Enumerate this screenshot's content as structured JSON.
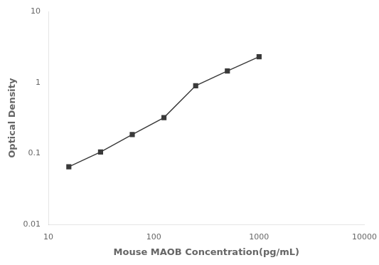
{
  "chart_data": {
    "type": "line",
    "x": [
      15.625,
      31.25,
      62.5,
      125,
      250,
      500,
      1000
    ],
    "values": [
      0.065,
      0.105,
      0.185,
      0.32,
      0.9,
      1.45,
      2.3
    ],
    "xlabel": "Mouse MAOB Concentration(pg/mL)",
    "ylabel": "Optical Density",
    "xlim": [
      10,
      10000
    ],
    "ylim": [
      0.01,
      10
    ],
    "xticks": [
      10,
      100,
      1000,
      10000
    ],
    "yticks": [
      0.01,
      0.1,
      1,
      10
    ],
    "log": true,
    "grid": false,
    "color": "#3a3a3a",
    "marker": "square"
  }
}
